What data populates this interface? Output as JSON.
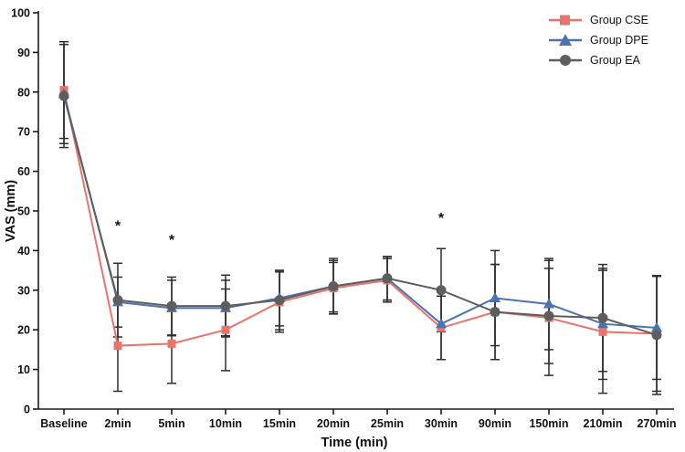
{
  "figure": {
    "background": "#ffffff"
  },
  "chart_data": {
    "type": "line",
    "title": "",
    "xlabel": "Time (min)",
    "ylabel": "VAS (mm)",
    "ylim": [
      0,
      100
    ],
    "ytick_step": 10,
    "grid": false,
    "legend_position": "top-right",
    "axis_color": "#1a1a1a",
    "error_bar_color": "#2e2e2e",
    "categories": [
      "Baseline",
      "2min",
      "5min",
      "10min",
      "15min",
      "20min",
      "25min",
      "30min",
      "90min",
      "150min",
      "210min",
      "270min"
    ],
    "series": [
      {
        "name": "Group CSE",
        "marker": "square",
        "color": "#E8756B",
        "values": [
          80.5,
          16,
          16.5,
          20,
          27,
          30.5,
          32.5,
          20.5,
          24.5,
          23,
          19.5,
          19
        ],
        "err": [
          12.2,
          11.5,
          10,
          10.3,
          7.6,
          6.5,
          5.5,
          8,
          12,
          14.5,
          15.5,
          14.5
        ]
      },
      {
        "name": "Group DPE",
        "marker": "triangle",
        "color": "#4D72AE",
        "values": [
          79.5,
          27,
          25.5,
          25.5,
          28,
          31,
          33,
          21.5,
          28,
          26.5,
          21.5,
          20.5
        ],
        "err": [
          12.5,
          6.3,
          7,
          7,
          7,
          6.5,
          5.5,
          9,
          12,
          11.5,
          14,
          13
        ]
      },
      {
        "name": "Group EA",
        "marker": "circle",
        "color": "#5E5E5E",
        "values": [
          79,
          27.5,
          26,
          26,
          27.5,
          31,
          33,
          30,
          24.5,
          23.5,
          23,
          18.7
        ],
        "err": [
          13,
          9.3,
          7.3,
          7.8,
          7.5,
          7,
          5.5,
          10.5,
          12,
          12,
          13.5,
          15
        ]
      }
    ],
    "annotations": [
      {
        "text": "*",
        "category": "2min",
        "y": 45
      },
      {
        "text": "*",
        "category": "5min",
        "y": 41.5
      },
      {
        "text": "*",
        "category": "30min",
        "y": 47
      }
    ]
  }
}
